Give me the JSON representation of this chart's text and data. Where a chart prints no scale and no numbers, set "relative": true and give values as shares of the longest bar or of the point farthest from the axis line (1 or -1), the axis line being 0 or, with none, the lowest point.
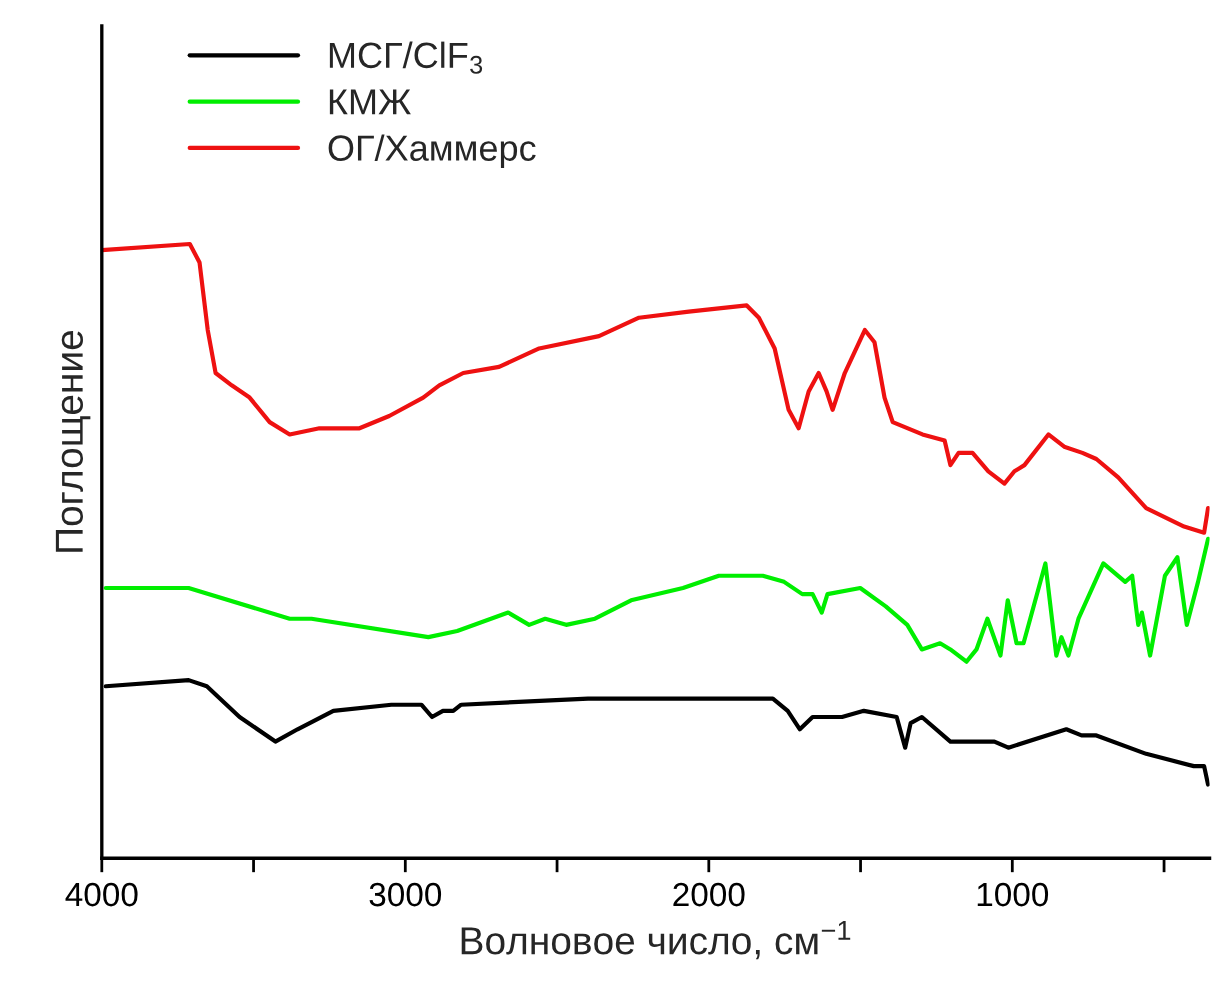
{
  "chart_data": {
    "type": "line",
    "relative": true,
    "xlabel": "Волновое число, см$^{−1}$",
    "ylabel": "Поглощение",
    "xlim": [
      4000,
      350
    ],
    "xticks": [
      4000,
      {
        "value": 3500,
        "label": null
      },
      3000,
      {
        "value": 2500,
        "label": null
      },
      2000,
      {
        "value": 1500,
        "label": null
      },
      1000,
      {
        "value": 500,
        "label": null
      }
    ],
    "grid": false,
    "legend": "top left",
    "marker": "none",
    "line_style": "solid",
    "series": [
      {
        "name": "МСГ/ClF$_{3}$",
        "color": "#000000",
        "x": [
          3987,
          3714,
          3654,
          3546,
          3428,
          3355,
          3237,
          3046,
          2947,
          2912,
          2876,
          2842,
          2816,
          2398,
          1921,
          1789,
          1740,
          1700,
          1658,
          1561,
          1489,
          1381,
          1353,
          1335,
          1298,
          1204,
          1059,
          1013,
          822,
          772,
          723,
          559,
          402,
          368,
          355
        ],
        "values": [
          0.28,
          0.29,
          0.28,
          0.23,
          0.19,
          0.21,
          0.24,
          0.25,
          0.25,
          0.23,
          0.24,
          0.24,
          0.25,
          0.26,
          0.26,
          0.26,
          0.24,
          0.21,
          0.23,
          0.23,
          0.24,
          0.23,
          0.18,
          0.22,
          0.23,
          0.19,
          0.19,
          0.18,
          0.21,
          0.2,
          0.2,
          0.17,
          0.15,
          0.15,
          0.12
        ]
      },
      {
        "name": "КМЖ",
        "color": "#00ee00",
        "x": [
          3987,
          3714,
          3381,
          3309,
          2924,
          2829,
          2661,
          2592,
          2539,
          2470,
          2375,
          2256,
          2085,
          1967,
          1822,
          1752,
          1692,
          1658,
          1628,
          1609,
          1501,
          1417,
          1346,
          1298,
          1238,
          1204,
          1151,
          1118,
          1082,
          1039,
          1015,
          986,
          963,
          891,
          855,
          838,
          815,
          782,
          700,
          628,
          605,
          585,
          573,
          546,
          497,
          456,
          425,
          388,
          355
        ],
        "values": [
          0.44,
          0.44,
          0.39,
          0.39,
          0.36,
          0.37,
          0.4,
          0.38,
          0.39,
          0.38,
          0.39,
          0.42,
          0.44,
          0.46,
          0.46,
          0.45,
          0.43,
          0.43,
          0.4,
          0.43,
          0.44,
          0.41,
          0.38,
          0.34,
          0.35,
          0.34,
          0.32,
          0.34,
          0.39,
          0.33,
          0.42,
          0.35,
          0.35,
          0.48,
          0.33,
          0.36,
          0.33,
          0.39,
          0.48,
          0.45,
          0.46,
          0.38,
          0.4,
          0.33,
          0.46,
          0.49,
          0.38,
          0.45,
          0.52
        ]
      },
      {
        "name": "ОГ/Хаммерс",
        "color": "#ee1111",
        "x": [
          4000,
          3710,
          3678,
          3651,
          3625,
          3572,
          3513,
          3447,
          3381,
          3283,
          3151,
          3053,
          2941,
          2914,
          2888,
          2809,
          2691,
          2559,
          2362,
          2230,
          2066,
          1875,
          1835,
          1783,
          1737,
          1704,
          1671,
          1638,
          1612,
          1592,
          1552,
          1486,
          1454,
          1421,
          1394,
          1296,
          1223,
          1204,
          1177,
          1131,
          1079,
          1026,
          993,
          960,
          881,
          829,
          769,
          723,
          651,
          559,
          434,
          368,
          355
        ],
        "values": [
          0.99,
          1.0,
          0.97,
          0.86,
          0.79,
          0.77,
          0.75,
          0.71,
          0.69,
          0.7,
          0.7,
          0.72,
          0.75,
          0.76,
          0.77,
          0.79,
          0.8,
          0.83,
          0.85,
          0.88,
          0.89,
          0.9,
          0.88,
          0.83,
          0.73,
          0.7,
          0.76,
          0.79,
          0.76,
          0.73,
          0.79,
          0.86,
          0.84,
          0.75,
          0.71,
          0.69,
          0.68,
          0.64,
          0.66,
          0.66,
          0.63,
          0.61,
          0.63,
          0.64,
          0.69,
          0.67,
          0.66,
          0.65,
          0.62,
          0.57,
          0.54,
          0.53,
          0.57
        ]
      }
    ]
  }
}
